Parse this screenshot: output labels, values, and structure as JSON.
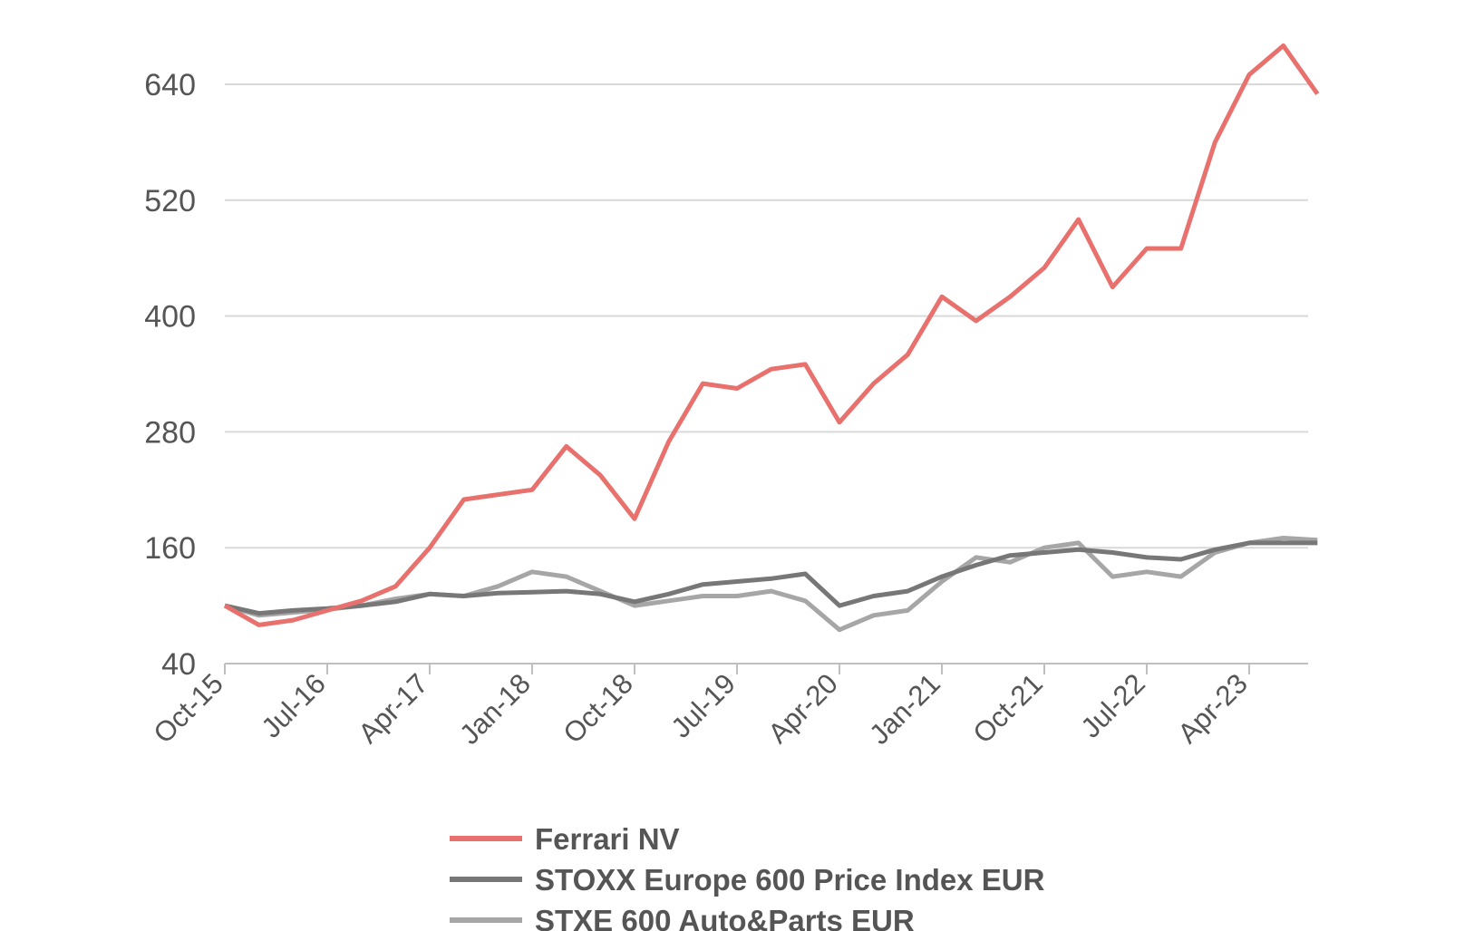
{
  "chart_data": {
    "type": "line",
    "title": "",
    "xlabel": "",
    "ylabel": "",
    "ylim": [
      40,
      700
    ],
    "yticks": [
      40,
      160,
      280,
      400,
      520,
      640
    ],
    "xticks": [
      "Oct-15",
      "Jul-16",
      "Apr-17",
      "Jan-18",
      "Oct-18",
      "Jul-19",
      "Apr-20",
      "Jan-21",
      "Oct-21",
      "Jul-22",
      "Apr-23"
    ],
    "x_range": [
      "2015-10",
      "2023-10"
    ],
    "grid": "horizontal",
    "legend_position": "bottom",
    "series": [
      {
        "name": "Ferrari NV",
        "color": "#E8716E",
        "x": [
          "2015-10",
          "2016-01",
          "2016-04",
          "2016-07",
          "2016-10",
          "2017-01",
          "2017-04",
          "2017-07",
          "2017-10",
          "2018-01",
          "2018-04",
          "2018-07",
          "2018-10",
          "2019-01",
          "2019-04",
          "2019-07",
          "2019-10",
          "2020-01",
          "2020-04",
          "2020-07",
          "2020-10",
          "2021-01",
          "2021-04",
          "2021-07",
          "2021-10",
          "2022-01",
          "2022-04",
          "2022-07",
          "2022-10",
          "2023-01",
          "2023-04",
          "2023-07",
          "2023-10"
        ],
        "values": [
          100,
          80,
          85,
          95,
          105,
          120,
          160,
          210,
          215,
          220,
          265,
          235,
          190,
          270,
          330,
          325,
          345,
          350,
          290,
          330,
          360,
          420,
          395,
          420,
          450,
          500,
          430,
          470,
          470,
          580,
          650,
          680,
          630
        ]
      },
      {
        "name": "STOXX Europe 600 Price Index EUR",
        "color": "#777777",
        "x": [
          "2015-10",
          "2016-01",
          "2016-04",
          "2016-07",
          "2016-10",
          "2017-01",
          "2017-04",
          "2017-07",
          "2017-10",
          "2018-01",
          "2018-04",
          "2018-07",
          "2018-10",
          "2019-01",
          "2019-04",
          "2019-07",
          "2019-10",
          "2020-01",
          "2020-04",
          "2020-07",
          "2020-10",
          "2021-01",
          "2021-04",
          "2021-07",
          "2021-10",
          "2022-01",
          "2022-04",
          "2022-07",
          "2022-10",
          "2023-01",
          "2023-04",
          "2023-07",
          "2023-10"
        ],
        "values": [
          100,
          92,
          95,
          97,
          100,
          104,
          112,
          110,
          113,
          114,
          115,
          112,
          104,
          112,
          122,
          125,
          128,
          133,
          100,
          110,
          115,
          130,
          142,
          152,
          155,
          158,
          155,
          150,
          148,
          158,
          165,
          165,
          165
        ]
      },
      {
        "name": "STXE 600 Auto&Parts EUR",
        "color": "#A6A6A6",
        "x": [
          "2015-10",
          "2016-01",
          "2016-04",
          "2016-07",
          "2016-10",
          "2017-01",
          "2017-04",
          "2017-07",
          "2017-10",
          "2018-01",
          "2018-04",
          "2018-07",
          "2018-10",
          "2019-01",
          "2019-04",
          "2019-07",
          "2019-10",
          "2020-01",
          "2020-04",
          "2020-07",
          "2020-10",
          "2021-01",
          "2021-04",
          "2021-07",
          "2021-10",
          "2022-01",
          "2022-04",
          "2022-07",
          "2022-10",
          "2023-01",
          "2023-04",
          "2023-07",
          "2023-10"
        ],
        "values": [
          100,
          90,
          93,
          96,
          100,
          107,
          112,
          110,
          120,
          135,
          130,
          115,
          100,
          105,
          110,
          110,
          115,
          105,
          75,
          90,
          95,
          125,
          150,
          145,
          160,
          165,
          130,
          135,
          130,
          155,
          165,
          170,
          168
        ]
      }
    ]
  }
}
